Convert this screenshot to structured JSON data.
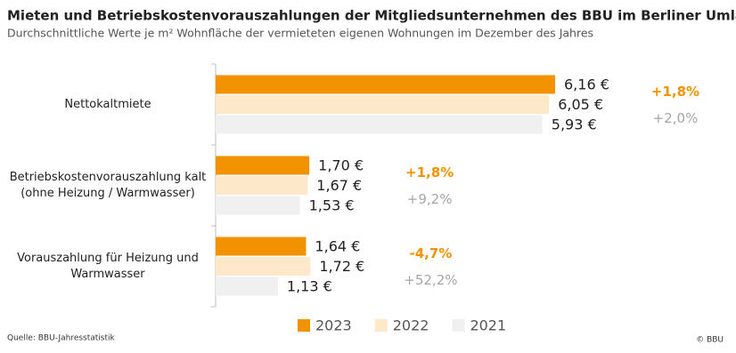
{
  "chart_data": {
    "type": "bar",
    "orientation": "horizontal",
    "title": "Mieten und Betriebskostenvorauszahlungen der Mitgliedsunternehmen des BBU im Berliner Umland",
    "subtitle": "Durchschnittliche Werte je m² Wohnfläche der vermieteten eigenen Wohnungen im Dezember des Jahres",
    "categories": [
      "Nettokaltmiete",
      "Betriebskostenvorauszahlung kalt (ohne Heizung / Warmwasser)",
      "Vorauszahlung für Heizung und Warmwasser"
    ],
    "series": [
      {
        "name": "2023",
        "color": "#f39200",
        "values": [
          6.16,
          1.7,
          1.64
        ],
        "value_labels": [
          "6,16 €",
          "1,70 €",
          "1,64 €"
        ]
      },
      {
        "name": "2022",
        "color": "#fde9c9",
        "values": [
          6.05,
          1.67,
          1.72
        ],
        "value_labels": [
          "6,05 €",
          "1,67 €",
          "1,72 €"
        ]
      },
      {
        "name": "2021",
        "color": "#f0f0f0",
        "values": [
          5.93,
          1.53,
          1.13
        ],
        "value_labels": [
          "5,93 €",
          "1,53 €",
          "1,13 €"
        ]
      }
    ],
    "annotations": [
      [
        "+1,8%",
        "+2,0%"
      ],
      [
        "+1,8%",
        "+9,2%"
      ],
      [
        "-4,7%",
        "+52,2%"
      ]
    ],
    "annotation_colors": [
      "#f39200",
      "#a6a6a6"
    ],
    "legend": "bottom",
    "source": "Quelle: BBU-Jahresstatistik",
    "copyright": "© BBU"
  }
}
